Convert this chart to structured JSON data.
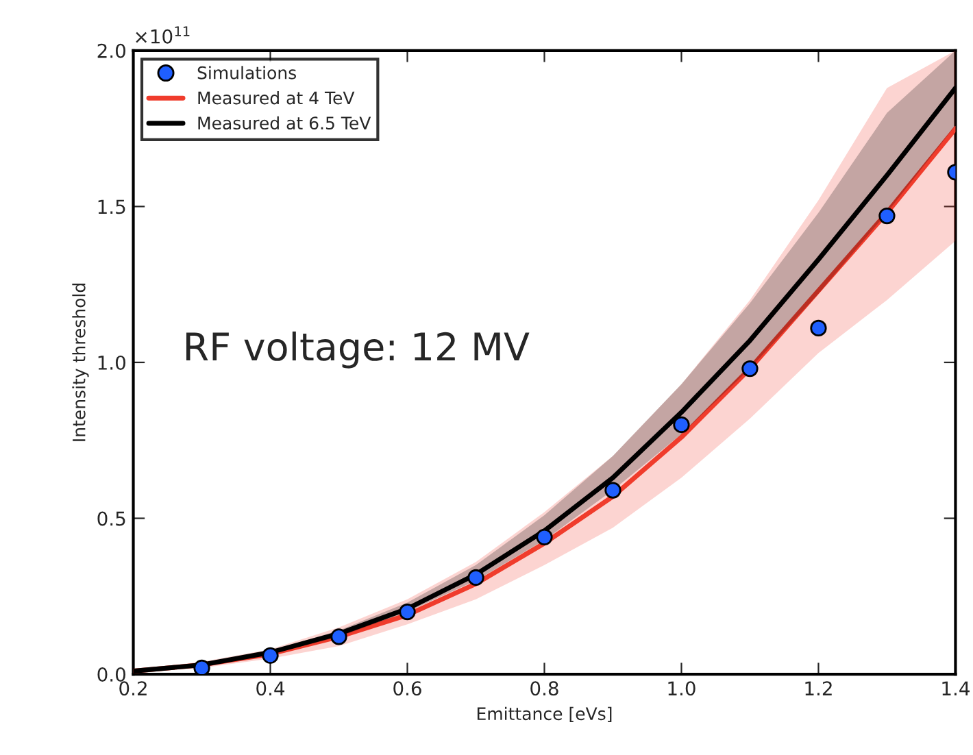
{
  "chart_data": {
    "type": "line",
    "xlabel": "Emittance [eVs]",
    "ylabel": "Intensity threshold",
    "annotations": [
      "×10$^{11}$",
      "RF voltage: 12 MV"
    ],
    "xlim": [
      0.2,
      1.4
    ],
    "xticks": [
      0.2,
      0.4,
      0.6,
      0.8,
      {
        "value": 1.0,
        "label": "1.0"
      },
      1.2,
      1.4
    ],
    "ylim": [
      0.0,
      2.0
    ],
    "yticks": [
      {
        "value": 0.0,
        "label": "0.0"
      },
      0.5,
      {
        "value": 1.0,
        "label": "1.0"
      },
      1.5,
      {
        "value": 2.0,
        "label": "2.0"
      }
    ],
    "grid": false,
    "legend": "top left",
    "series": [
      {
        "name": "Simulations",
        "type": "scatter",
        "marker": "circle",
        "color": "#1f5fff",
        "x": [
          0.3,
          0.4,
          0.5,
          0.6,
          0.7,
          0.8,
          0.9,
          1.0,
          1.1,
          1.2,
          1.3,
          1.4
        ],
        "values": [
          0.02,
          0.06,
          0.12,
          0.2,
          0.31,
          0.44,
          0.59,
          0.8,
          0.98,
          1.11,
          1.47,
          1.61
        ]
      },
      {
        "name": "Measured at 4 TeV",
        "color": "#f03c2c",
        "x": [
          0.2,
          0.3,
          0.4,
          0.5,
          0.6,
          0.7,
          0.8,
          0.9,
          1.0,
          1.1,
          1.2,
          1.3,
          1.4
        ],
        "values": [
          0.01,
          0.03,
          0.065,
          0.12,
          0.19,
          0.29,
          0.42,
          0.57,
          0.76,
          0.98,
          1.23,
          1.48,
          1.75
        ],
        "lower": [
          0.005,
          0.02,
          0.05,
          0.09,
          0.16,
          0.24,
          0.35,
          0.47,
          0.63,
          0.82,
          1.03,
          1.2,
          1.39
        ],
        "upper": [
          0.015,
          0.04,
          0.08,
          0.15,
          0.24,
          0.36,
          0.52,
          0.7,
          0.93,
          1.2,
          1.52,
          1.88,
          2.0
        ]
      },
      {
        "name": "Measured at 6.5 TeV",
        "color": "#000000",
        "x": [
          0.2,
          0.3,
          0.4,
          0.5,
          0.6,
          0.7,
          0.8,
          0.9,
          1.0,
          1.1,
          1.2,
          1.3,
          1.4
        ],
        "values": [
          0.01,
          0.03,
          0.07,
          0.13,
          0.21,
          0.32,
          0.46,
          0.63,
          0.84,
          1.07,
          1.33,
          1.6,
          1.88
        ],
        "lower": [
          0.01,
          0.03,
          0.065,
          0.12,
          0.2,
          0.3,
          0.43,
          0.59,
          0.77,
          0.98,
          1.22,
          1.48,
          1.76
        ],
        "upper": [
          0.01,
          0.035,
          0.075,
          0.14,
          0.23,
          0.35,
          0.51,
          0.7,
          0.93,
          1.19,
          1.48,
          1.8,
          2.0
        ]
      }
    ]
  }
}
